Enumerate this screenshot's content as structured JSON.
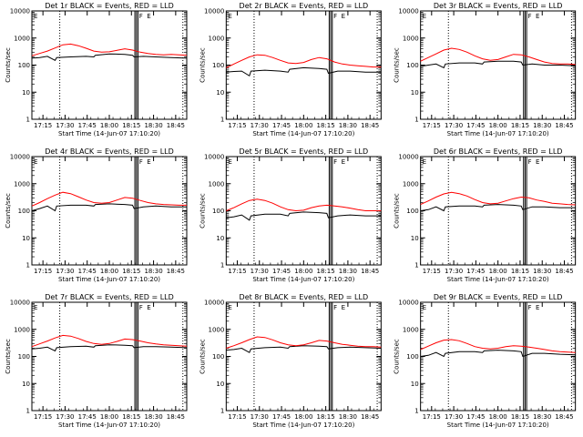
{
  "figure": {
    "xlabel": "Start Time (14-Jun-07 17:10:20)",
    "ylabel": "Counts/sec",
    "legend_markers": [
      "F",
      "E"
    ]
  },
  "colors": {
    "events": "#000000",
    "lld": "#ff0000",
    "axes": "#000000",
    "markers": "#000000"
  },
  "chart_data": [
    {
      "type": "line",
      "title": "Det 1r BLACK = Events, RED = LLD",
      "xlabel": "Start Time (14-Jun-07 17:10:20)",
      "ylabel": "Counts/sec",
      "yscale": "log",
      "xlim": [
        0,
        100
      ],
      "ylim": [
        1,
        10000
      ],
      "x_tick_labels": [
        "17:15",
        "17:30",
        "17:45",
        "18:00",
        "18:15",
        "18:30",
        "18:45"
      ],
      "y_tick_labels": [
        "1",
        "10",
        "100",
        "1000",
        "10000"
      ],
      "series": [
        {
          "name": "Events",
          "color": "#000000",
          "x": [
            0,
            5,
            10,
            15,
            16,
            25,
            35,
            40,
            41,
            50,
            60,
            65,
            66,
            72,
            80,
            90,
            100
          ],
          "y": [
            180,
            190,
            210,
            150,
            190,
            200,
            210,
            200,
            230,
            260,
            250,
            230,
            200,
            210,
            200,
            190,
            180
          ]
        },
        {
          "name": "LLD",
          "color": "#ff0000",
          "x": [
            0,
            5,
            10,
            15,
            20,
            25,
            30,
            35,
            40,
            45,
            50,
            55,
            60,
            65,
            70,
            75,
            80,
            85,
            90,
            95,
            100
          ],
          "y": [
            220,
            270,
            330,
            430,
            560,
            600,
            520,
            420,
            330,
            300,
            310,
            350,
            400,
            360,
            300,
            270,
            250,
            240,
            250,
            240,
            230
          ]
        }
      ]
    },
    {
      "type": "line",
      "title": "Det 2r BLACK = Events, RED = LLD",
      "xlabel": "Start Time (14-Jun-07 17:10:20)",
      "ylabel": "Counts/sec",
      "yscale": "log",
      "xlim": [
        0,
        100
      ],
      "ylim": [
        1,
        10000
      ],
      "x_tick_labels": [
        "17:15",
        "17:30",
        "17:45",
        "18:00",
        "18:15",
        "18:30",
        "18:45"
      ],
      "y_tick_labels": [
        "1",
        "10",
        "100",
        "1000",
        "10000"
      ],
      "series": [
        {
          "name": "Events",
          "color": "#000000",
          "x": [
            0,
            5,
            10,
            15,
            16,
            25,
            35,
            40,
            41,
            50,
            60,
            65,
            66,
            72,
            80,
            90,
            100
          ],
          "y": [
            55,
            58,
            60,
            40,
            60,
            65,
            60,
            55,
            70,
            80,
            75,
            70,
            50,
            60,
            60,
            55,
            55
          ]
        },
        {
          "name": "LLD",
          "color": "#ff0000",
          "x": [
            0,
            5,
            10,
            15,
            20,
            25,
            30,
            35,
            40,
            45,
            50,
            55,
            60,
            65,
            70,
            75,
            80,
            85,
            90,
            95,
            100
          ],
          "y": [
            80,
            110,
            150,
            200,
            240,
            230,
            190,
            150,
            120,
            115,
            125,
            160,
            190,
            170,
            130,
            110,
            100,
            95,
            90,
            85,
            85
          ]
        }
      ]
    },
    {
      "type": "line",
      "title": "Det 3r BLACK = Events, RED = LLD",
      "xlabel": "Start Time (14-Jun-07 17:10:20)",
      "ylabel": "Counts/sec",
      "yscale": "log",
      "xlim": [
        0,
        100
      ],
      "ylim": [
        1,
        10000
      ],
      "x_tick_labels": [
        "17:15",
        "17:30",
        "17:45",
        "18:00",
        "18:15",
        "18:30",
        "18:45"
      ],
      "y_tick_labels": [
        "1",
        "10",
        "100",
        "1000",
        "10000"
      ],
      "series": [
        {
          "name": "Events",
          "color": "#000000",
          "x": [
            0,
            5,
            10,
            15,
            16,
            25,
            35,
            40,
            41,
            50,
            60,
            65,
            66,
            72,
            80,
            90,
            100
          ],
          "y": [
            90,
            100,
            110,
            80,
            110,
            120,
            120,
            110,
            130,
            140,
            140,
            130,
            100,
            110,
            100,
            100,
            95
          ]
        },
        {
          "name": "LLD",
          "color": "#ff0000",
          "x": [
            0,
            5,
            10,
            15,
            20,
            25,
            30,
            35,
            40,
            45,
            50,
            55,
            60,
            65,
            70,
            75,
            80,
            85,
            90,
            95,
            100
          ],
          "y": [
            140,
            190,
            260,
            360,
            420,
            380,
            300,
            220,
            170,
            150,
            160,
            200,
            250,
            240,
            200,
            160,
            130,
            115,
            110,
            110,
            105
          ]
        }
      ]
    },
    {
      "type": "line",
      "title": "Det 4r BLACK = Events, RED = LLD",
      "xlabel": "Start Time (14-Jun-07 17:10:20)",
      "ylabel": "Counts/sec",
      "yscale": "log",
      "xlim": [
        0,
        100
      ],
      "ylim": [
        1,
        10000
      ],
      "x_tick_labels": [
        "17:15",
        "17:30",
        "17:45",
        "18:00",
        "18:15",
        "18:30",
        "18:45"
      ],
      "y_tick_labels": [
        "1",
        "10",
        "100",
        "1000",
        "10000"
      ],
      "series": [
        {
          "name": "Events",
          "color": "#000000",
          "x": [
            0,
            5,
            10,
            15,
            16,
            25,
            35,
            40,
            41,
            50,
            60,
            65,
            66,
            72,
            80,
            90,
            100
          ],
          "y": [
            100,
            120,
            150,
            100,
            150,
            160,
            160,
            150,
            170,
            180,
            170,
            160,
            120,
            140,
            150,
            140,
            140
          ]
        },
        {
          "name": "LLD",
          "color": "#ff0000",
          "x": [
            0,
            5,
            10,
            15,
            20,
            25,
            30,
            35,
            40,
            45,
            50,
            55,
            60,
            65,
            70,
            75,
            80,
            85,
            90,
            95,
            100
          ],
          "y": [
            150,
            200,
            280,
            380,
            480,
            430,
            330,
            250,
            200,
            190,
            200,
            250,
            310,
            290,
            240,
            200,
            180,
            170,
            165,
            160,
            160
          ]
        }
      ]
    },
    {
      "type": "line",
      "title": "Det 5r BLACK = Events, RED = LLD",
      "xlabel": "Start Time (14-Jun-07 17:10:20)",
      "ylabel": "Counts/sec",
      "yscale": "log",
      "xlim": [
        0,
        100
      ],
      "ylim": [
        1,
        10000
      ],
      "x_tick_labels": [
        "17:15",
        "17:30",
        "17:45",
        "18:00",
        "18:15",
        "18:30",
        "18:45"
      ],
      "y_tick_labels": [
        "1",
        "10",
        "100",
        "1000",
        "10000"
      ],
      "series": [
        {
          "name": "Events",
          "color": "#000000",
          "x": [
            0,
            5,
            10,
            15,
            16,
            25,
            35,
            40,
            41,
            50,
            60,
            65,
            66,
            72,
            80,
            90,
            100
          ],
          "y": [
            55,
            60,
            70,
            45,
            65,
            75,
            75,
            65,
            80,
            90,
            85,
            80,
            55,
            65,
            70,
            65,
            65
          ]
        },
        {
          "name": "LLD",
          "color": "#ff0000",
          "x": [
            0,
            5,
            10,
            15,
            20,
            25,
            30,
            35,
            40,
            45,
            50,
            55,
            60,
            65,
            70,
            75,
            80,
            85,
            90,
            95,
            100
          ],
          "y": [
            100,
            130,
            180,
            240,
            270,
            240,
            190,
            140,
            110,
            100,
            105,
            130,
            150,
            160,
            150,
            140,
            125,
            110,
            100,
            100,
            100
          ]
        }
      ]
    },
    {
      "type": "line",
      "title": "Det 6r BLACK = Events, RED = LLD",
      "xlabel": "Start Time (14-Jun-07 17:10:20)",
      "ylabel": "Counts/sec",
      "yscale": "log",
      "xlim": [
        0,
        100
      ],
      "ylim": [
        1,
        10000
      ],
      "x_tick_labels": [
        "17:15",
        "17:30",
        "17:45",
        "18:00",
        "18:15",
        "18:30",
        "18:45"
      ],
      "y_tick_labels": [
        "1",
        "10",
        "100",
        "1000",
        "10000"
      ],
      "series": [
        {
          "name": "Events",
          "color": "#000000",
          "x": [
            0,
            5,
            10,
            15,
            16,
            25,
            35,
            40,
            41,
            50,
            60,
            65,
            66,
            72,
            80,
            90,
            100
          ],
          "y": [
            100,
            110,
            140,
            100,
            140,
            150,
            150,
            140,
            160,
            170,
            160,
            150,
            110,
            140,
            140,
            130,
            130
          ]
        },
        {
          "name": "LLD",
          "color": "#ff0000",
          "x": [
            0,
            5,
            10,
            15,
            20,
            25,
            30,
            35,
            40,
            45,
            50,
            55,
            60,
            65,
            70,
            75,
            80,
            85,
            90,
            95,
            100
          ],
          "y": [
            170,
            230,
            320,
            420,
            480,
            430,
            350,
            260,
            200,
            180,
            190,
            230,
            280,
            320,
            300,
            250,
            220,
            190,
            180,
            170,
            165
          ]
        }
      ]
    },
    {
      "type": "line",
      "title": "Det 7r BLACK = Events, RED = LLD",
      "xlabel": "Start Time (14-Jun-07 17:10:20)",
      "ylabel": "Counts/sec",
      "yscale": "log",
      "xlim": [
        0,
        100
      ],
      "ylim": [
        1,
        10000
      ],
      "x_tick_labels": [
        "17:15",
        "17:30",
        "17:45",
        "18:00",
        "18:15",
        "18:30",
        "18:45"
      ],
      "y_tick_labels": [
        "1",
        "10",
        "100",
        "1000",
        "10000"
      ],
      "series": [
        {
          "name": "Events",
          "color": "#000000",
          "x": [
            0,
            5,
            10,
            15,
            16,
            25,
            35,
            40,
            41,
            50,
            60,
            65,
            66,
            72,
            80,
            90,
            100
          ],
          "y": [
            190,
            200,
            220,
            160,
            210,
            230,
            240,
            220,
            250,
            270,
            260,
            250,
            210,
            230,
            230,
            220,
            210
          ]
        },
        {
          "name": "LLD",
          "color": "#ff0000",
          "x": [
            0,
            5,
            10,
            15,
            20,
            25,
            30,
            35,
            40,
            45,
            50,
            55,
            60,
            65,
            70,
            75,
            80,
            85,
            90,
            95,
            100
          ],
          "y": [
            230,
            290,
            370,
            480,
            600,
            560,
            460,
            360,
            300,
            280,
            300,
            360,
            440,
            420,
            370,
            320,
            290,
            270,
            260,
            250,
            240
          ]
        }
      ]
    },
    {
      "type": "line",
      "title": "Det 8r BLACK = Events, RED = LLD",
      "xlabel": "Start Time (14-Jun-07 17:10:20)",
      "ylabel": "Counts/sec",
      "yscale": "log",
      "xlim": [
        0,
        100
      ],
      "ylim": [
        1,
        10000
      ],
      "x_tick_labels": [
        "17:15",
        "17:30",
        "17:45",
        "18:00",
        "18:15",
        "18:30",
        "18:45"
      ],
      "y_tick_labels": [
        "1",
        "10",
        "100",
        "1000",
        "10000"
      ],
      "series": [
        {
          "name": "Events",
          "color": "#000000",
          "x": [
            0,
            5,
            10,
            15,
            16,
            25,
            35,
            40,
            41,
            50,
            60,
            65,
            66,
            72,
            80,
            90,
            100
          ],
          "y": [
            170,
            180,
            200,
            140,
            190,
            210,
            220,
            200,
            230,
            250,
            240,
            230,
            190,
            210,
            220,
            210,
            200
          ]
        },
        {
          "name": "LLD",
          "color": "#ff0000",
          "x": [
            0,
            5,
            10,
            15,
            20,
            25,
            30,
            35,
            40,
            45,
            50,
            55,
            60,
            65,
            70,
            75,
            80,
            85,
            90,
            95,
            100
          ],
          "y": [
            200,
            250,
            320,
            420,
            530,
            500,
            410,
            320,
            270,
            250,
            270,
            320,
            390,
            370,
            320,
            280,
            260,
            240,
            230,
            230,
            220
          ]
        }
      ]
    },
    {
      "type": "line",
      "title": "Det 9r BLACK = Events, RED = LLD",
      "xlabel": "Start Time (14-Jun-07 17:10:20)",
      "ylabel": "Counts/sec",
      "yscale": "log",
      "xlim": [
        0,
        100
      ],
      "ylim": [
        1,
        10000
      ],
      "x_tick_labels": [
        "17:15",
        "17:30",
        "17:45",
        "18:00",
        "18:15",
        "18:30",
        "18:45"
      ],
      "y_tick_labels": [
        "1",
        "10",
        "100",
        "1000",
        "10000"
      ],
      "series": [
        {
          "name": "Events",
          "color": "#000000",
          "x": [
            0,
            5,
            10,
            15,
            16,
            25,
            35,
            40,
            41,
            50,
            60,
            65,
            66,
            72,
            80,
            90,
            100
          ],
          "y": [
            100,
            110,
            140,
            100,
            130,
            150,
            150,
            140,
            160,
            170,
            160,
            150,
            100,
            130,
            130,
            120,
            115
          ]
        },
        {
          "name": "LLD",
          "color": "#ff0000",
          "x": [
            0,
            5,
            10,
            15,
            20,
            25,
            30,
            35,
            40,
            45,
            50,
            55,
            60,
            65,
            70,
            75,
            80,
            85,
            90,
            95,
            100
          ],
          "y": [
            180,
            240,
            320,
            400,
            420,
            380,
            300,
            230,
            200,
            190,
            200,
            230,
            250,
            240,
            220,
            200,
            180,
            160,
            150,
            145,
            140
          ]
        }
      ]
    }
  ]
}
